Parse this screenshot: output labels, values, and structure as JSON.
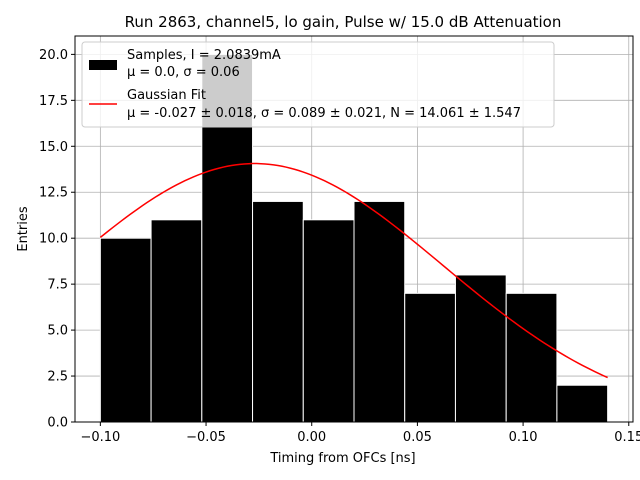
{
  "chart_data": {
    "type": "bar",
    "title": "Run 2863, channel5, lo gain, Pulse w/ 15.0 dB Attenuation",
    "xlabel": "Timing from OFCs [ns]",
    "ylabel": "Entries",
    "xlim": [
      -0.112,
      0.152
    ],
    "ylim": [
      0,
      21
    ],
    "grid": true,
    "xticks": [
      -0.1,
      -0.05,
      0.0,
      0.05,
      0.1,
      0.15
    ],
    "xtick_labels": [
      "−0.10",
      "−0.05",
      "0.00",
      "0.05",
      "0.10",
      "0.15"
    ],
    "yticks": [
      0,
      2.5,
      5,
      7.5,
      10,
      12.5,
      15,
      17.5,
      20
    ],
    "ytick_labels": [
      "0.0",
      "2.5",
      "5.0",
      "7.5",
      "10.0",
      "12.5",
      "15.0",
      "17.5",
      "20.0"
    ],
    "histogram": {
      "name": "Samples",
      "bin_edges": [
        -0.1,
        -0.076,
        -0.052,
        -0.028,
        -0.004,
        0.02,
        0.044,
        0.068,
        0.092,
        0.116,
        0.14
      ],
      "counts": [
        10,
        11,
        20,
        12,
        11,
        12,
        7,
        8,
        7,
        2
      ],
      "color": "#000000"
    },
    "fit": {
      "name": "Gaussian Fit",
      "mu": -0.027,
      "sigma": 0.089,
      "N": 14.061,
      "x_range": [
        -0.1,
        0.14
      ],
      "color": "#ff0000"
    },
    "legend": {
      "position": "upper-left",
      "entries": [
        {
          "kind": "patch",
          "line1": "Samples, I = 2.0839mA",
          "line2": "μ = 0.0, σ = 0.06"
        },
        {
          "kind": "line",
          "line1": "Gaussian Fit",
          "line2": "μ = -0.027 ± 0.018, σ = 0.089 ± 0.021, N = 14.061 ± 1.547"
        }
      ]
    }
  }
}
